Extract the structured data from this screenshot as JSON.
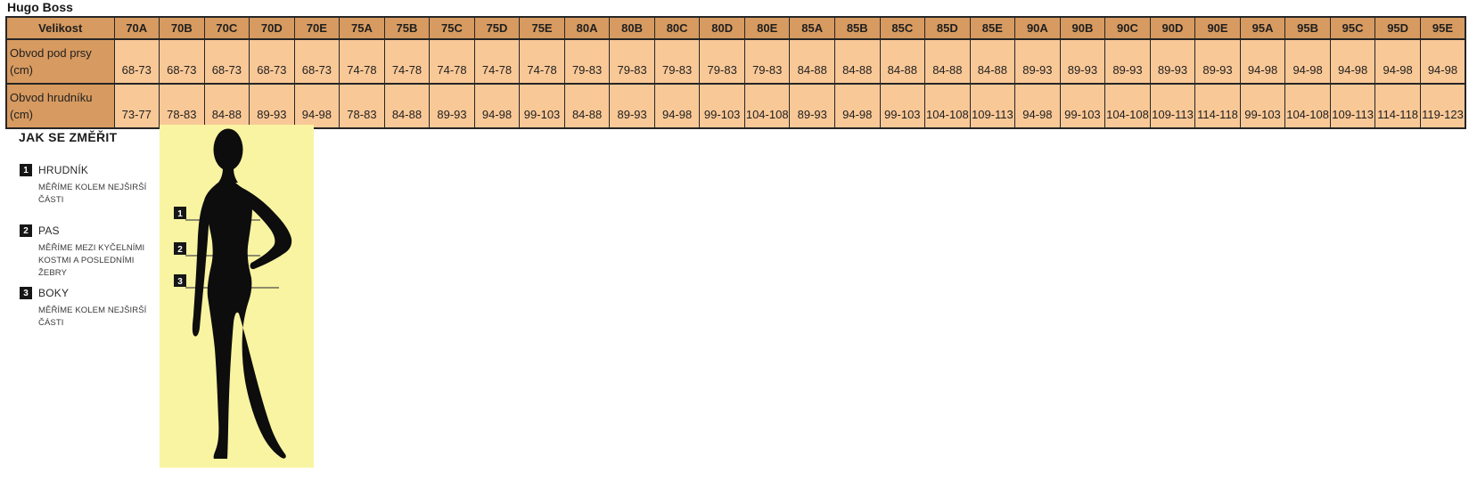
{
  "page": {
    "title": "Hugo Boss"
  },
  "size_table": {
    "corner_label": "Velikost",
    "row_under_bust_label": "Obvod pod prsy (cm)",
    "row_chest_label": "Obvod hrudníku (cm)",
    "sizes": [
      "70A",
      "70B",
      "70C",
      "70D",
      "70E",
      "75A",
      "75B",
      "75C",
      "75D",
      "75E",
      "80A",
      "80B",
      "80C",
      "80D",
      "80E",
      "85A",
      "85B",
      "85C",
      "85D",
      "85E",
      "90A",
      "90B",
      "90C",
      "90D",
      "90E",
      "95A",
      "95B",
      "95C",
      "95D",
      "95E"
    ],
    "under_bust": [
      "68-73",
      "68-73",
      "68-73",
      "68-73",
      "68-73",
      "74-78",
      "74-78",
      "74-78",
      "74-78",
      "74-78",
      "79-83",
      "79-83",
      "79-83",
      "79-83",
      "79-83",
      "84-88",
      "84-88",
      "84-88",
      "84-88",
      "84-88",
      "89-93",
      "89-93",
      "89-93",
      "89-93",
      "89-93",
      "94-98",
      "94-98",
      "94-98",
      "94-98",
      "94-98"
    ],
    "chest": [
      "73-77",
      "78-83",
      "84-88",
      "89-93",
      "94-98",
      "78-83",
      "84-88",
      "89-93",
      "94-98",
      "99-103",
      "84-88",
      "89-93",
      "94-98",
      "99-103",
      "104-108",
      "89-93",
      "94-98",
      "99-103",
      "104-108",
      "109-113",
      "94-98",
      "99-103",
      "104-108",
      "109-113",
      "114-118",
      "99-103",
      "104-108",
      "109-113",
      "114-118",
      "119-123"
    ]
  },
  "measure_guide": {
    "title": "JAK SE ZMĚŘIT",
    "items": [
      {
        "num": "1",
        "name": "HRUDNÍK",
        "desc": "MĚŘÍME KOLEM NEJŠIRŠÍ ČÁSTI"
      },
      {
        "num": "2",
        "name": "PAS",
        "desc": "MĚŘÍME MEZI KYČELNÍMI KOSTMI A POSLEDNÍMI ŽEBRY"
      },
      {
        "num": "3",
        "name": "BOKY",
        "desc": "MĚŘÍME KOLEM NEJŠIRŠÍ ČÁSTI"
      }
    ]
  },
  "colors": {
    "table_header_bg": "#d79a60",
    "table_cell_bg": "#f9c897",
    "table_border": "#262626",
    "figure_panel_bg": "#f9f4a1",
    "marker_bg": "#161616",
    "marker_text": "#ffffff",
    "silhouette": "#0d0d0d",
    "measure_line": "#4d4d4d"
  }
}
